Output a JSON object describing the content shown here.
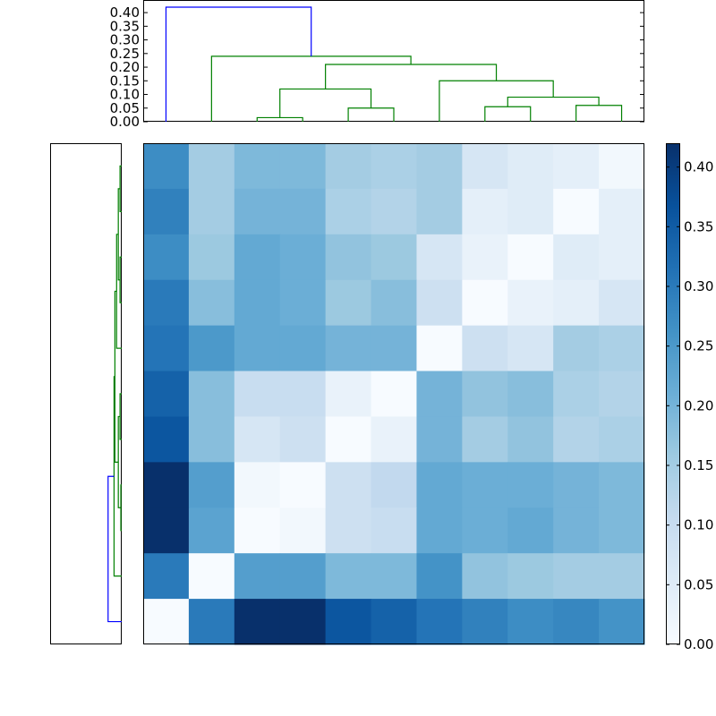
{
  "chart_data": {
    "type": "heatmap",
    "title": "",
    "xlabel": "",
    "ylabel": "",
    "colormap": "Blues",
    "colors": {
      "dendro_root": "#0000ff",
      "dendro_cluster": "#008000",
      "frame": "#000000"
    },
    "matrix": [
      [
        0.27,
        0.15,
        0.19,
        0.19,
        0.15,
        0.14,
        0.15,
        0.07,
        0.05,
        0.04,
        0.01
      ],
      [
        0.29,
        0.15,
        0.2,
        0.2,
        0.14,
        0.13,
        0.15,
        0.04,
        0.05,
        0.0,
        0.04
      ],
      [
        0.27,
        0.16,
        0.22,
        0.21,
        0.17,
        0.16,
        0.07,
        0.03,
        0.0,
        0.05,
        0.04
      ],
      [
        0.3,
        0.18,
        0.22,
        0.21,
        0.16,
        0.18,
        0.09,
        0.0,
        0.03,
        0.04,
        0.07
      ],
      [
        0.31,
        0.25,
        0.22,
        0.22,
        0.2,
        0.2,
        0.0,
        0.09,
        0.07,
        0.15,
        0.14
      ],
      [
        0.34,
        0.18,
        0.1,
        0.1,
        0.03,
        0.0,
        0.2,
        0.17,
        0.18,
        0.14,
        0.13
      ],
      [
        0.36,
        0.18,
        0.07,
        0.09,
        0.0,
        0.03,
        0.2,
        0.15,
        0.17,
        0.13,
        0.14
      ],
      [
        0.42,
        0.24,
        0.01,
        0.0,
        0.09,
        0.11,
        0.22,
        0.21,
        0.21,
        0.2,
        0.19
      ],
      [
        0.42,
        0.23,
        0.0,
        0.01,
        0.09,
        0.1,
        0.22,
        0.21,
        0.22,
        0.2,
        0.19
      ],
      [
        0.3,
        0.0,
        0.24,
        0.24,
        0.19,
        0.19,
        0.26,
        0.17,
        0.16,
        0.15,
        0.15
      ],
      [
        0.0,
        0.3,
        0.42,
        0.42,
        0.36,
        0.34,
        0.31,
        0.29,
        0.27,
        0.28,
        0.26
      ]
    ],
    "value_range": [
      0,
      0.42
    ],
    "colorbar": {
      "ticks": [
        0.0,
        0.05,
        0.1,
        0.15,
        0.2,
        0.25,
        0.3,
        0.35,
        0.4
      ],
      "tick_labels": [
        "0.00",
        "0.05",
        "0.10",
        "0.15",
        "0.20",
        "0.25",
        "0.30",
        "0.35",
        "0.40"
      ]
    },
    "top_dendrogram": {
      "ylim": [
        0,
        0.42
      ],
      "ticks": [
        0.0,
        0.05,
        0.1,
        0.15,
        0.2,
        0.25,
        0.3,
        0.35,
        0.4
      ],
      "tick_labels": [
        "0.00",
        "0.05",
        "0.10",
        "0.15",
        "0.20",
        "0.25",
        "0.30",
        "0.35",
        "0.40"
      ],
      "links": [
        {
          "left": 2.5,
          "right": 3.5,
          "height": 0.015,
          "left_height": 0,
          "right_height": 0,
          "color": "dendro_cluster"
        },
        {
          "left": 4.5,
          "right": 5.5,
          "height": 0.05,
          "left_height": 0,
          "right_height": 0,
          "color": "dendro_cluster"
        },
        {
          "left": 3.0,
          "right": 5.0,
          "height": 0.12,
          "left_height": 0.015,
          "right_height": 0.05,
          "color": "dendro_cluster"
        },
        {
          "left": 7.5,
          "right": 8.5,
          "height": 0.055,
          "left_height": 0,
          "right_height": 0,
          "color": "dendro_cluster"
        },
        {
          "left": 9.5,
          "right": 10.5,
          "height": 0.06,
          "left_height": 0,
          "right_height": 0,
          "color": "dendro_cluster"
        },
        {
          "left": 8.0,
          "right": 10.0,
          "height": 0.09,
          "left_height": 0.055,
          "right_height": 0.06,
          "color": "dendro_cluster"
        },
        {
          "left": 6.5,
          "right": 9.0,
          "height": 0.15,
          "left_height": 0,
          "right_height": 0.09,
          "color": "dendro_cluster"
        },
        {
          "left": 4.0,
          "right": 7.75,
          "height": 0.21,
          "left_height": 0.12,
          "right_height": 0.15,
          "color": "dendro_cluster"
        },
        {
          "left": 1.5,
          "right": 5.875,
          "height": 0.24,
          "left_height": 0,
          "right_height": 0.21,
          "color": "dendro_cluster"
        },
        {
          "left": 0.5,
          "right": 3.6875,
          "height": 0.42,
          "left_height": 0,
          "right_height": 0.24,
          "color": "dendro_root"
        }
      ]
    },
    "left_dendrogram": {
      "xlim": [
        0,
        0.42
      ],
      "links": [
        {
          "top": 0.5,
          "bottom": 1.5,
          "height": 0.01,
          "top_height": 0,
          "bottom_height": 0,
          "color": "dendro_cluster"
        },
        {
          "top": 2.5,
          "bottom": 3.5,
          "height": 0.01,
          "top_height": 0,
          "bottom_height": 0,
          "color": "dendro_cluster"
        },
        {
          "top": 1.0,
          "bottom": 3.0,
          "height": 0.02,
          "top_height": 0.01,
          "bottom_height": 0.01,
          "color": "dendro_cluster"
        },
        {
          "top": 2.0,
          "bottom": 4.5,
          "height": 0.03,
          "top_height": 0.02,
          "bottom_height": 0,
          "color": "dendro_cluster"
        },
        {
          "top": 5.5,
          "bottom": 6.5,
          "height": 0.01,
          "top_height": 0,
          "bottom_height": 0,
          "color": "dendro_cluster"
        },
        {
          "top": 7.5,
          "bottom": 8.5,
          "height": 0.005,
          "top_height": 0,
          "bottom_height": 0,
          "color": "dendro_cluster"
        },
        {
          "top": 6.0,
          "bottom": 8.0,
          "height": 0.02,
          "top_height": 0.01,
          "bottom_height": 0.005,
          "color": "dendro_cluster"
        },
        {
          "top": 3.25,
          "bottom": 7.0,
          "height": 0.04,
          "top_height": 0.03,
          "bottom_height": 0.02,
          "color": "dendro_cluster"
        },
        {
          "top": 5.125,
          "bottom": 9.5,
          "height": 0.045,
          "top_height": 0.04,
          "bottom_height": 0,
          "color": "dendro_cluster"
        },
        {
          "top": 7.3125,
          "bottom": 10.5,
          "height": 0.08,
          "top_height": 0.045,
          "bottom_height": 0,
          "color": "dendro_root"
        }
      ]
    }
  }
}
